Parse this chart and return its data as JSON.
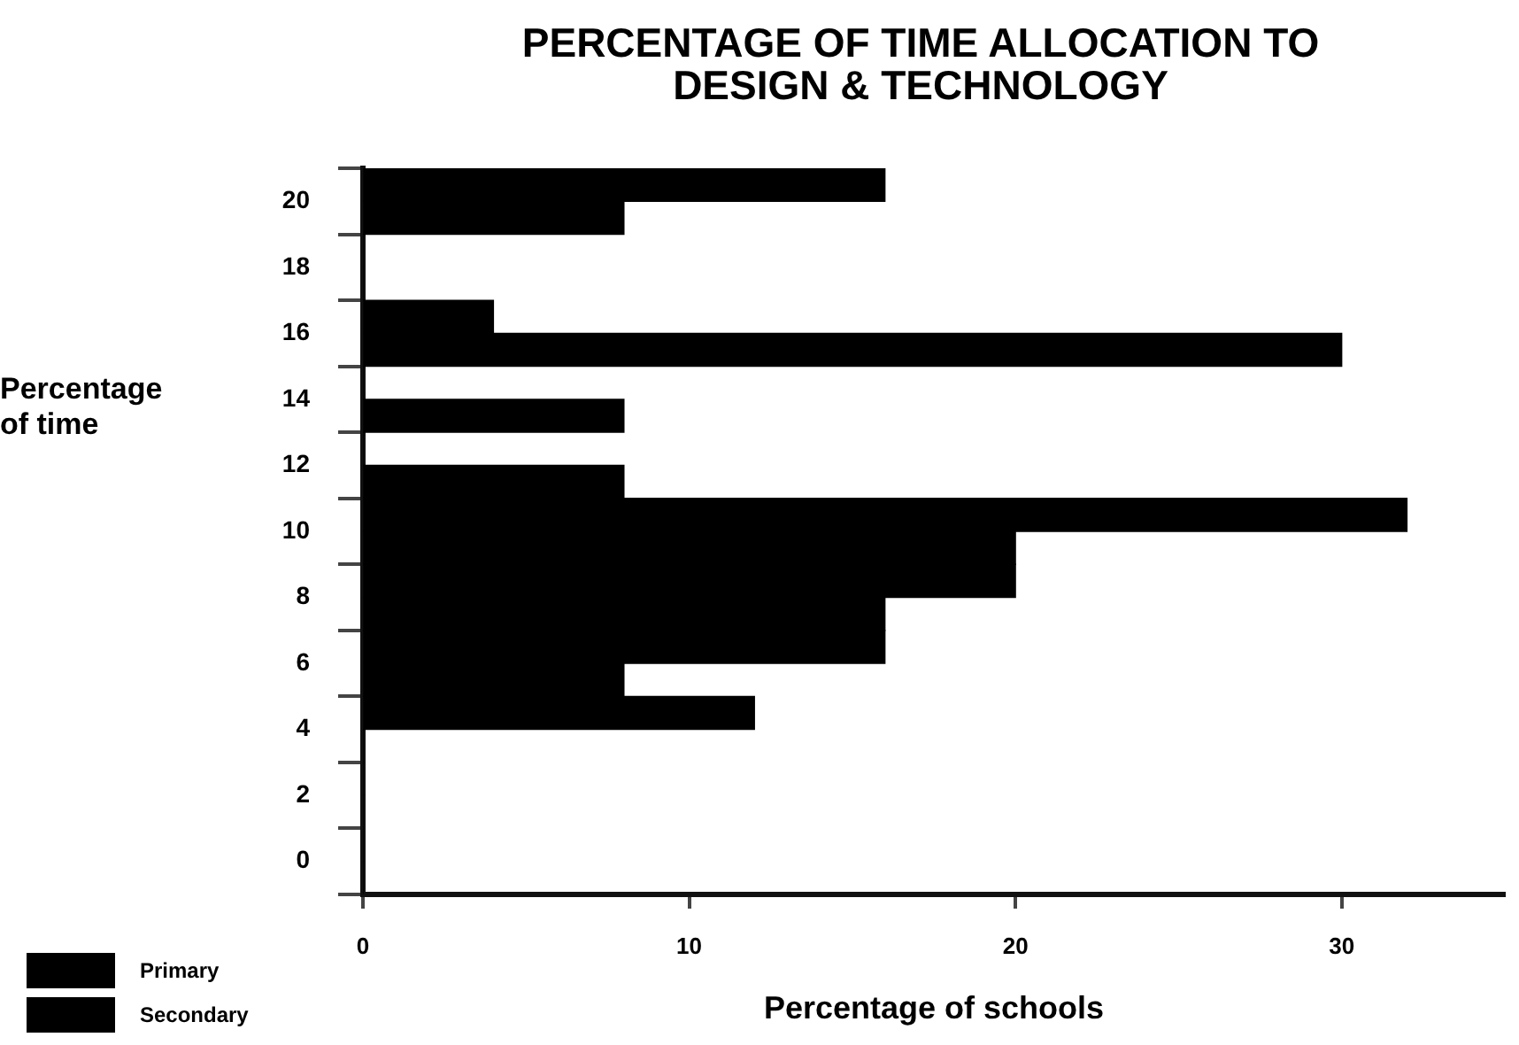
{
  "chart_data": {
    "type": "bar",
    "orientation": "horizontal",
    "title": "PERCENTAGE OF TIME ALLOCATION TO\nDESIGN & TECHNOLOGY",
    "xlabel": "Percentage of schools",
    "ylabel": "Percentage\nof time",
    "categories": [
      "20",
      "18",
      "16",
      "14",
      "12",
      "10",
      "8",
      "6",
      "4",
      "2",
      "0"
    ],
    "series": [
      {
        "name": "Primary",
        "color": "#000000",
        "values": [
          16,
          0,
          4,
          0,
          0,
          32,
          20,
          16,
          12,
          0,
          0
        ]
      },
      {
        "name": "Secondary",
        "color": "#000000",
        "values": [
          8,
          0,
          30,
          8,
          8,
          20,
          16,
          8,
          0,
          0,
          0
        ]
      }
    ],
    "xlim": [
      0,
      35
    ],
    "xticks": [
      0,
      10,
      20,
      30
    ],
    "grid": false,
    "legend": "bottom left"
  }
}
